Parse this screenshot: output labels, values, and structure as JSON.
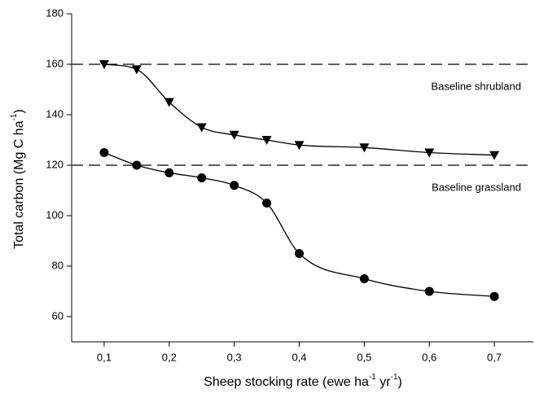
{
  "chart_data": {
    "type": "line",
    "x_label": {
      "text": "Sheep stocking rate (ewe ha",
      "sup1": "-1",
      "mid": " yr",
      "sup2": "-1",
      "end": ")"
    },
    "y_label": {
      "text": "Total carbon (Mg C ha",
      "sup": "-1",
      "end": ")"
    },
    "x": [
      0.1,
      0.15,
      0.2,
      0.25,
      0.3,
      0.35,
      0.4,
      0.5,
      0.6,
      0.7
    ],
    "series": [
      {
        "color": "#000000",
        "marker": "triangle-down",
        "values": [
          160,
          158,
          145,
          135,
          132,
          130,
          128,
          127,
          125,
          124
        ]
      },
      {
        "color": "#000000",
        "marker": "circle",
        "values": [
          125,
          120,
          117,
          115,
          112,
          105,
          85,
          75,
          70,
          68
        ]
      }
    ],
    "reference_lines": [
      {
        "value": 160,
        "label": "Baseline shrubland"
      },
      {
        "value": 120,
        "label": "Baseline grassland"
      }
    ],
    "xlim": [
      0.05,
      0.76
    ],
    "ylim": [
      50,
      180
    ],
    "xticks": [
      {
        "value": 0.1,
        "label": "0,1"
      },
      {
        "value": 0.2,
        "label": "0,2"
      },
      {
        "value": 0.3,
        "label": "0,3"
      },
      {
        "value": 0.4,
        "label": "0,4"
      },
      {
        "value": 0.5,
        "label": "0,5"
      },
      {
        "value": 0.6,
        "label": "0,6"
      },
      {
        "value": 0.7,
        "label": "0,7"
      }
    ],
    "yticks": [
      60,
      80,
      100,
      120,
      140,
      160,
      180
    ],
    "grid": false
  }
}
